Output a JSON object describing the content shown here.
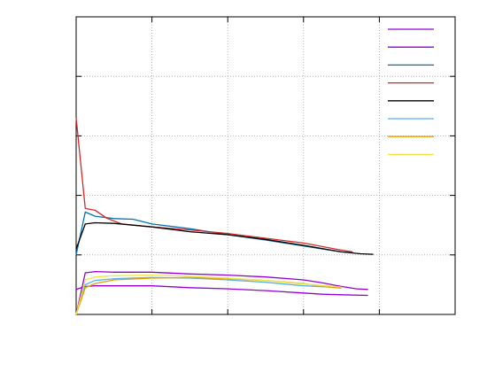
{
  "chart_data": {
    "type": "line",
    "title": "",
    "xlabel": "",
    "ylabel": "",
    "xlim": [
      0,
      5
    ],
    "ylim": [
      0,
      5
    ],
    "xticks": [
      0,
      1,
      2,
      3,
      4,
      5
    ],
    "yticks": [
      0,
      1,
      2,
      3,
      4,
      5
    ],
    "grid": true,
    "legend_position": "top-right",
    "series": [
      {
        "color": "#9400d3",
        "x": [
          0,
          0.12,
          0.25,
          0.5,
          1.0,
          1.5,
          2.0,
          2.5,
          3.0,
          3.25,
          3.5,
          3.85
        ],
        "y": [
          0.42,
          0.47,
          0.48,
          0.48,
          0.48,
          0.45,
          0.43,
          0.4,
          0.36,
          0.34,
          0.33,
          0.32
        ]
      },
      {
        "color": "#9400d3",
        "x": [
          0,
          0.12,
          0.25,
          0.5,
          1.0,
          1.5,
          2.0,
          2.5,
          3.0,
          3.25,
          3.5,
          3.7,
          3.85
        ],
        "y": [
          0.0,
          0.7,
          0.72,
          0.71,
          0.71,
          0.68,
          0.66,
          0.63,
          0.58,
          0.53,
          0.47,
          0.43,
          0.42
        ]
      },
      {
        "color": "#0072b2",
        "x": [
          0,
          0.12,
          0.25,
          0.5,
          0.75,
          1.0,
          1.5,
          2.0,
          2.5,
          3.0,
          3.25,
          3.5,
          3.65
        ],
        "y": [
          1.0,
          1.72,
          1.65,
          1.61,
          1.6,
          1.52,
          1.44,
          1.34,
          1.25,
          1.15,
          1.1,
          1.05,
          1.04
        ]
      },
      {
        "color": "#d62728",
        "x": [
          0,
          0.12,
          0.25,
          0.4,
          0.6,
          1.0,
          1.5,
          2.0,
          2.5,
          3.0,
          3.5,
          3.65
        ],
        "y": [
          3.3,
          1.78,
          1.75,
          1.62,
          1.52,
          1.47,
          1.42,
          1.36,
          1.28,
          1.2,
          1.08,
          1.05
        ]
      },
      {
        "color": "#000000",
        "x": [
          0,
          0.12,
          0.25,
          0.5,
          0.75,
          1.0,
          1.5,
          2.0,
          2.5,
          3.0,
          3.5,
          3.75,
          3.92
        ],
        "y": [
          1.1,
          1.52,
          1.54,
          1.53,
          1.5,
          1.47,
          1.39,
          1.34,
          1.26,
          1.16,
          1.05,
          1.02,
          1.01
        ]
      },
      {
        "color": "#56b4e9",
        "x": [
          0,
          0.12,
          0.25,
          0.5,
          1.0,
          1.5,
          2.0,
          2.5,
          3.0,
          3.5
        ],
        "y": [
          0.0,
          0.5,
          0.57,
          0.6,
          0.62,
          0.61,
          0.58,
          0.54,
          0.48,
          0.45
        ]
      },
      {
        "color": "#e69f00",
        "x": [
          0,
          0.12,
          0.25,
          0.5,
          1.0,
          1.5,
          2.0,
          2.5,
          3.0,
          3.25,
          3.5
        ],
        "y": [
          0.0,
          0.45,
          0.52,
          0.58,
          0.61,
          0.62,
          0.6,
          0.57,
          0.52,
          0.47,
          0.44
        ]
      },
      {
        "color": "#f0e442",
        "x": [
          0,
          0.12,
          0.25,
          0.5,
          1.0,
          1.5,
          2.0,
          2.5,
          3.0,
          3.5
        ],
        "y": [
          0.0,
          0.58,
          0.63,
          0.65,
          0.66,
          0.64,
          0.61,
          0.57,
          0.51,
          0.46
        ]
      }
    ]
  }
}
